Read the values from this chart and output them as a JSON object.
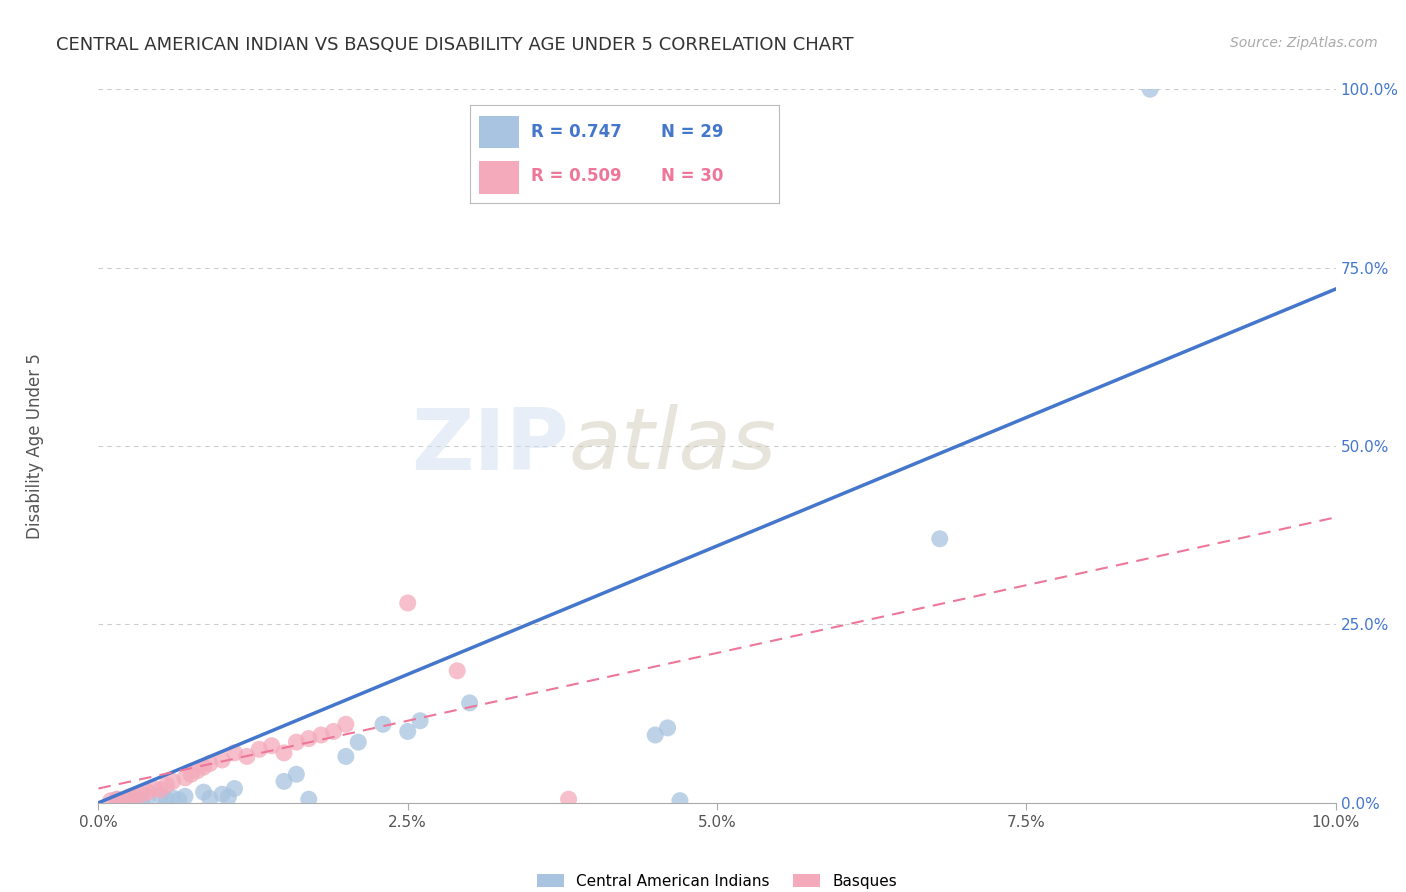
{
  "title": "CENTRAL AMERICAN INDIAN VS BASQUE DISABILITY AGE UNDER 5 CORRELATION CHART",
  "source": "Source: ZipAtlas.com",
  "ylabel": "Disability Age Under 5",
  "xlabel_tick_vals": [
    0.0,
    2.5,
    5.0,
    7.5,
    10.0
  ],
  "ylabel_tick_vals": [
    0.0,
    25.0,
    50.0,
    75.0,
    100.0
  ],
  "xlim": [
    0.0,
    10.0
  ],
  "ylim": [
    0.0,
    100.0
  ],
  "legend_label_blue": "Central American Indians",
  "legend_label_pink": "Basques",
  "blue_color": "#A8C4E0",
  "pink_color": "#F4AABA",
  "blue_line_color": "#4477CC",
  "pink_line_color": "#EE7799",
  "watermark_ZIP": "ZIP",
  "watermark_atlas": "atlas",
  "blue_scatter_x": [
    0.15,
    0.25,
    0.3,
    0.35,
    0.4,
    0.5,
    0.55,
    0.6,
    0.65,
    0.7,
    0.85,
    0.9,
    1.0,
    1.05,
    1.1,
    1.5,
    1.6,
    1.7,
    2.0,
    2.1,
    2.3,
    2.5,
    2.6,
    3.0,
    4.5,
    4.6,
    4.7,
    6.8,
    8.5
  ],
  "blue_scatter_y": [
    0.5,
    0.4,
    0.6,
    0.3,
    0.8,
    1.0,
    0.5,
    0.7,
    0.4,
    0.9,
    1.5,
    0.6,
    1.2,
    0.8,
    2.0,
    3.0,
    4.0,
    0.5,
    6.5,
    8.5,
    11.0,
    10.0,
    11.5,
    14.0,
    9.5,
    10.5,
    0.3,
    37.0,
    100.0
  ],
  "pink_scatter_x": [
    0.1,
    0.15,
    0.2,
    0.25,
    0.3,
    0.35,
    0.4,
    0.45,
    0.5,
    0.55,
    0.6,
    0.7,
    0.75,
    0.8,
    0.85,
    0.9,
    1.0,
    1.1,
    1.2,
    1.3,
    1.4,
    1.5,
    1.6,
    1.7,
    1.8,
    1.9,
    2.0,
    2.5,
    2.9,
    3.8
  ],
  "pink_scatter_y": [
    0.3,
    0.5,
    0.4,
    0.8,
    1.0,
    1.2,
    1.5,
    2.0,
    1.8,
    2.5,
    3.0,
    3.5,
    4.0,
    4.5,
    5.0,
    5.5,
    6.0,
    7.0,
    6.5,
    7.5,
    8.0,
    7.0,
    8.5,
    9.0,
    9.5,
    10.0,
    11.0,
    28.0,
    18.5,
    0.5
  ],
  "blue_trendline_x": [
    0.0,
    10.0
  ],
  "blue_trendline_y": [
    0.0,
    72.0
  ],
  "pink_trendline_x": [
    0.0,
    10.0
  ],
  "pink_trendline_y": [
    2.0,
    40.0
  ],
  "grid_color": "#CCCCCC",
  "bg_color": "#FFFFFF",
  "legend_R_blue": "R = 0.747",
  "legend_N_blue": "N = 29",
  "legend_R_pink": "R = 0.509",
  "legend_N_pink": "N = 30"
}
